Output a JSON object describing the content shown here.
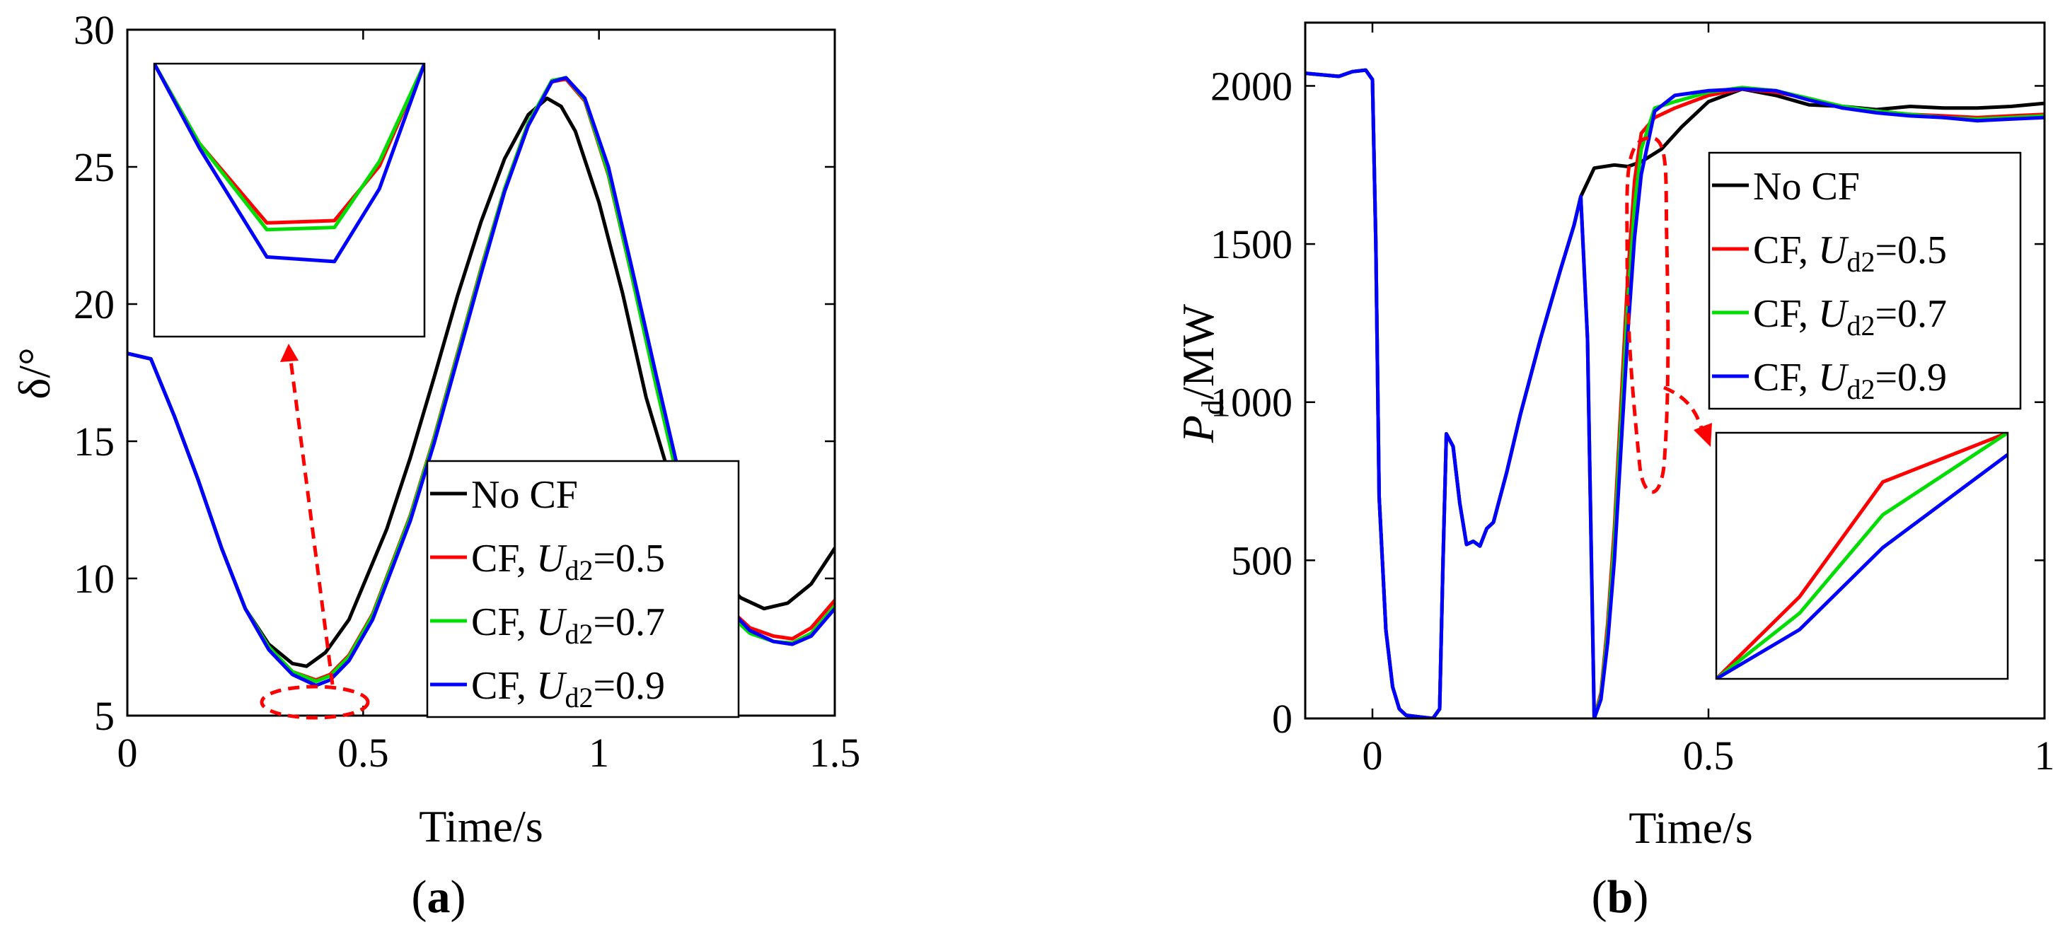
{
  "figure": {
    "panel_labels": [
      "a",
      "b"
    ]
  },
  "chart_data": [
    {
      "type": "line",
      "panel": "a",
      "title": "",
      "xlabel": "Time/s",
      "ylabel": "δ/°",
      "xlim": [
        0,
        1.5
      ],
      "ylim": [
        5,
        30
      ],
      "xticks": [
        0,
        0.5,
        1,
        1.5
      ],
      "xtick_labels": [
        "0",
        "0.5",
        "1",
        "1.5"
      ],
      "yticks": [
        5,
        10,
        15,
        20,
        25,
        30
      ],
      "ytick_labels": [
        "5",
        "10",
        "15",
        "20",
        "25",
        "30"
      ],
      "grid": false,
      "legend_position": "bottom-right",
      "series": [
        {
          "name": "No CF",
          "legend_prefix": "No CF",
          "legend_var": "",
          "legend_sub": "",
          "legend_value": "",
          "color": "#000000",
          "x": [
            0,
            0.05,
            0.1,
            0.15,
            0.2,
            0.25,
            0.3,
            0.35,
            0.38,
            0.42,
            0.47,
            0.55,
            0.6,
            0.65,
            0.7,
            0.75,
            0.8,
            0.85,
            0.89,
            0.92,
            0.95,
            1.0,
            1.05,
            1.1,
            1.15,
            1.2,
            1.25,
            1.3,
            1.35,
            1.4,
            1.45,
            1.5
          ],
          "y": [
            18.2,
            18.0,
            15.9,
            13.6,
            11.1,
            8.9,
            7.6,
            6.9,
            6.8,
            7.3,
            8.5,
            11.8,
            14.4,
            17.3,
            20.3,
            23.0,
            25.3,
            26.9,
            27.5,
            27.2,
            26.3,
            23.7,
            20.4,
            16.6,
            13.7,
            11.6,
            10.2,
            9.3,
            8.9,
            9.1,
            9.8,
            11.1
          ]
        },
        {
          "name": "CF, Ud2=0.5",
          "legend_prefix": "CF, ",
          "legend_var": "U",
          "legend_sub": "d2",
          "legend_value": "=0.5",
          "color": "#ff0000",
          "x": [
            0,
            0.05,
            0.1,
            0.15,
            0.2,
            0.25,
            0.3,
            0.35,
            0.4,
            0.43,
            0.47,
            0.52,
            0.6,
            0.65,
            0.7,
            0.75,
            0.8,
            0.85,
            0.9,
            0.93,
            0.97,
            1.02,
            1.07,
            1.12,
            1.17,
            1.22,
            1.27,
            1.32,
            1.37,
            1.41,
            1.45,
            1.5
          ],
          "y": [
            18.2,
            18.0,
            15.9,
            13.6,
            11.1,
            8.9,
            7.5,
            6.6,
            6.3,
            6.5,
            7.2,
            8.7,
            12.3,
            15.1,
            18.2,
            21.3,
            24.2,
            26.6,
            28.1,
            28.2,
            27.4,
            24.7,
            21.0,
            17.2,
            13.5,
            10.7,
            9.0,
            8.2,
            7.9,
            7.8,
            8.2,
            9.2
          ]
        },
        {
          "name": "CF, Ud2=0.7",
          "legend_prefix": "CF, ",
          "legend_var": "U",
          "legend_sub": "d2",
          "legend_value": "=0.7",
          "color": "#00dd00",
          "x": [
            0,
            0.05,
            0.1,
            0.15,
            0.2,
            0.25,
            0.3,
            0.35,
            0.4,
            0.43,
            0.47,
            0.52,
            0.6,
            0.65,
            0.7,
            0.75,
            0.8,
            0.85,
            0.9,
            0.93,
            0.97,
            1.02,
            1.07,
            1.12,
            1.17,
            1.22,
            1.27,
            1.32,
            1.37,
            1.41,
            1.45,
            1.5
          ],
          "y": [
            18.2,
            18.0,
            15.9,
            13.6,
            11.1,
            8.9,
            7.5,
            6.6,
            6.25,
            6.45,
            7.15,
            8.65,
            12.25,
            15.05,
            18.15,
            21.25,
            24.2,
            26.6,
            28.15,
            28.25,
            27.45,
            24.75,
            21.0,
            17.1,
            13.4,
            10.5,
            8.8,
            8.0,
            7.7,
            7.65,
            8.0,
            9.0
          ]
        },
        {
          "name": "CF, Ud2=0.9",
          "legend_prefix": "CF, ",
          "legend_var": "U",
          "legend_sub": "d2",
          "legend_value": "=0.9",
          "color": "#0000ff",
          "x": [
            0,
            0.05,
            0.1,
            0.15,
            0.2,
            0.25,
            0.3,
            0.35,
            0.4,
            0.43,
            0.47,
            0.52,
            0.6,
            0.65,
            0.7,
            0.75,
            0.8,
            0.85,
            0.9,
            0.93,
            0.97,
            1.02,
            1.07,
            1.12,
            1.17,
            1.22,
            1.27,
            1.32,
            1.37,
            1.41,
            1.45,
            1.5
          ],
          "y": [
            18.2,
            18.0,
            15.9,
            13.6,
            11.1,
            8.9,
            7.4,
            6.5,
            6.1,
            6.3,
            7.0,
            8.5,
            12.1,
            14.9,
            18.0,
            21.1,
            24.1,
            26.5,
            28.1,
            28.25,
            27.5,
            25.0,
            21.3,
            17.5,
            13.8,
            10.8,
            9.0,
            8.1,
            7.7,
            7.6,
            7.9,
            8.9
          ]
        }
      ],
      "inset": {
        "xlim": [
          0.33,
          0.45
        ],
        "ylim": [
          6.05,
          7.25
        ],
        "series_x": [
          0.33,
          0.35,
          0.38,
          0.41,
          0.43,
          0.45
        ],
        "series_y": [
          [
            7.25,
            6.9,
            6.55,
            6.56,
            6.8,
            7.25
          ],
          [
            7.25,
            6.9,
            6.52,
            6.53,
            6.82,
            7.25
          ],
          [
            7.25,
            6.88,
            6.4,
            6.38,
            6.7,
            7.25
          ]
        ]
      }
    },
    {
      "type": "line",
      "panel": "b",
      "title": "",
      "xlabel": "Time/s",
      "ylabel_italic": "P",
      "ylabel_sub": "d",
      "ylabel_rest": "/MW",
      "xlim": [
        -0.1,
        1
      ],
      "ylim": [
        0,
        2200
      ],
      "xticks": [
        0,
        0.5,
        1
      ],
      "xtick_labels": [
        "0",
        "0.5",
        "1"
      ],
      "yticks": [
        0,
        500,
        1000,
        1500,
        2000
      ],
      "ytick_labels": [
        "0",
        "500",
        "1000",
        "1500",
        "2000"
      ],
      "grid": false,
      "legend_position": "right",
      "series": [
        {
          "name": "No CF",
          "legend_prefix": "No CF",
          "legend_var": "",
          "legend_sub": "",
          "legend_value": "",
          "color": "#000000",
          "x": [
            -0.1,
            -0.05,
            -0.03,
            -0.01,
            0,
            0.005,
            0.01,
            0.02,
            0.03,
            0.04,
            0.05,
            0.07,
            0.09,
            0.1,
            0.105,
            0.11,
            0.12,
            0.13,
            0.14,
            0.15,
            0.16,
            0.17,
            0.18,
            0.2,
            0.22,
            0.25,
            0.28,
            0.3,
            0.31,
            0.33,
            0.36,
            0.38,
            0.4,
            0.43,
            0.46,
            0.5,
            0.55,
            0.6,
            0.65,
            0.7,
            0.75,
            0.8,
            0.85,
            0.9,
            0.95,
            1.0
          ],
          "y": [
            2040,
            2030,
            2045,
            2050,
            2020,
            1500,
            700,
            280,
            100,
            30,
            10,
            5,
            0,
            30,
            500,
            900,
            860,
            680,
            550,
            560,
            545,
            600,
            620,
            780,
            960,
            1200,
            1420,
            1560,
            1650,
            1740,
            1750,
            1745,
            1760,
            1800,
            1870,
            1950,
            1990,
            1970,
            1940,
            1935,
            1925,
            1935,
            1930,
            1930,
            1935,
            1945
          ]
        },
        {
          "name": "CF, Ud2=0.5",
          "legend_prefix": "CF, ",
          "legend_var": "U",
          "legend_sub": "d2",
          "legend_value": "=0.5",
          "color": "#ff0000",
          "x": [
            -0.1,
            -0.05,
            -0.03,
            -0.01,
            0,
            0.005,
            0.01,
            0.02,
            0.03,
            0.04,
            0.05,
            0.07,
            0.09,
            0.1,
            0.105,
            0.11,
            0.12,
            0.13,
            0.14,
            0.15,
            0.16,
            0.17,
            0.18,
            0.2,
            0.22,
            0.25,
            0.28,
            0.3,
            0.31,
            0.32,
            0.33,
            0.34,
            0.35,
            0.36,
            0.37,
            0.38,
            0.39,
            0.4,
            0.42,
            0.45,
            0.5,
            0.55,
            0.6,
            0.65,
            0.7,
            0.75,
            0.8,
            0.85,
            0.9,
            0.95,
            1.0
          ],
          "y": [
            2040,
            2030,
            2045,
            2050,
            2020,
            1500,
            700,
            280,
            100,
            30,
            10,
            5,
            0,
            30,
            500,
            900,
            860,
            680,
            550,
            560,
            545,
            600,
            620,
            780,
            960,
            1200,
            1420,
            1560,
            1650,
            1200,
            0,
            80,
            300,
            600,
            1000,
            1400,
            1700,
            1850,
            1900,
            1930,
            1970,
            1990,
            1980,
            1960,
            1930,
            1920,
            1910,
            1905,
            1900,
            1905,
            1910
          ]
        },
        {
          "name": "CF, Ud2=0.7",
          "legend_prefix": "CF, ",
          "legend_var": "U",
          "legend_sub": "d2",
          "legend_value": "=0.7",
          "color": "#00dd00",
          "x": [
            -0.1,
            -0.05,
            -0.03,
            -0.01,
            0,
            0.005,
            0.01,
            0.02,
            0.03,
            0.04,
            0.05,
            0.07,
            0.09,
            0.1,
            0.105,
            0.11,
            0.12,
            0.13,
            0.14,
            0.15,
            0.16,
            0.17,
            0.18,
            0.2,
            0.22,
            0.25,
            0.28,
            0.3,
            0.31,
            0.32,
            0.33,
            0.34,
            0.35,
            0.36,
            0.37,
            0.38,
            0.39,
            0.4,
            0.42,
            0.45,
            0.5,
            0.55,
            0.6,
            0.65,
            0.7,
            0.75,
            0.8,
            0.85,
            0.9,
            0.95,
            1.0
          ],
          "y": [
            2040,
            2030,
            2045,
            2050,
            2020,
            1500,
            700,
            280,
            100,
            30,
            10,
            5,
            0,
            30,
            500,
            900,
            860,
            680,
            550,
            560,
            545,
            600,
            620,
            780,
            960,
            1200,
            1420,
            1560,
            1650,
            1200,
            0,
            70,
            270,
            560,
            940,
            1320,
            1620,
            1800,
            1930,
            1950,
            1980,
            1995,
            1985,
            1960,
            1935,
            1920,
            1910,
            1900,
            1895,
            1900,
            1905
          ]
        },
        {
          "name": "CF, Ud2=0.9",
          "legend_prefix": "CF, ",
          "legend_var": "U",
          "legend_sub": "d2",
          "legend_value": "=0.9",
          "color": "#0000ff",
          "x": [
            -0.1,
            -0.05,
            -0.03,
            -0.01,
            0,
            0.005,
            0.01,
            0.02,
            0.03,
            0.04,
            0.05,
            0.07,
            0.09,
            0.1,
            0.105,
            0.11,
            0.12,
            0.13,
            0.14,
            0.15,
            0.16,
            0.17,
            0.18,
            0.2,
            0.22,
            0.25,
            0.28,
            0.3,
            0.31,
            0.32,
            0.33,
            0.34,
            0.35,
            0.36,
            0.37,
            0.38,
            0.39,
            0.4,
            0.42,
            0.45,
            0.5,
            0.55,
            0.6,
            0.65,
            0.7,
            0.75,
            0.8,
            0.85,
            0.9,
            0.95,
            1.0
          ],
          "y": [
            2040,
            2030,
            2045,
            2050,
            2020,
            1500,
            700,
            280,
            100,
            30,
            10,
            5,
            0,
            30,
            500,
            900,
            860,
            680,
            550,
            560,
            545,
            600,
            620,
            780,
            960,
            1200,
            1420,
            1560,
            1650,
            1200,
            0,
            60,
            240,
            500,
            860,
            1220,
            1520,
            1720,
            1920,
            1970,
            1985,
            1990,
            1985,
            1955,
            1930,
            1915,
            1905,
            1900,
            1890,
            1895,
            1900
          ]
        }
      ],
      "inset": {
        "xlim": [
          0.335,
          0.37
        ],
        "ylim": [
          0,
          900
        ],
        "series_x": [
          0.335,
          0.345,
          0.355,
          0.37
        ],
        "series_y": [
          [
            0,
            300,
            720,
            900
          ],
          [
            0,
            240,
            600,
            900
          ],
          [
            0,
            180,
            480,
            820
          ]
        ]
      }
    }
  ]
}
